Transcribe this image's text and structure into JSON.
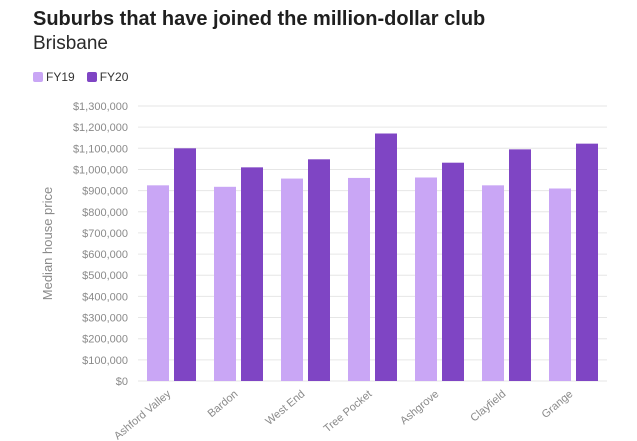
{
  "colors": {
    "fy19": "#c9a6f5",
    "fy20": "#7f45c4",
    "grid": "#e6e6e6",
    "axis_text": "#8a8a8a"
  },
  "chart_data": {
    "type": "bar",
    "title": "Suburbs that have joined the million-dollar club",
    "subtitle": "Brisbane",
    "xlabel": "",
    "ylabel": "Median house price",
    "categories": [
      "Ashford Valley",
      "Bardon",
      "West End",
      "Tree Pocket",
      "Ashgrove",
      "Clayfield",
      "Grange"
    ],
    "series": [
      {
        "name": "FY19",
        "values": [
          925000,
          918000,
          957000,
          960000,
          962000,
          925000,
          910000
        ]
      },
      {
        "name": "FY20",
        "values": [
          1100000,
          1010000,
          1048000,
          1170000,
          1032000,
          1095000,
          1122000
        ]
      }
    ],
    "ylim": [
      0,
      1300000
    ],
    "y_ticks": [
      "$0",
      "$100,000",
      "$200,000",
      "$300,000",
      "$400,000",
      "$500,000",
      "$600,000",
      "$700,000",
      "$800,000",
      "$900,000",
      "$1,000,000",
      "$1,100,000",
      "$1,200,000",
      "$1,300,000"
    ],
    "grid": true,
    "legend_position": "top-left"
  }
}
